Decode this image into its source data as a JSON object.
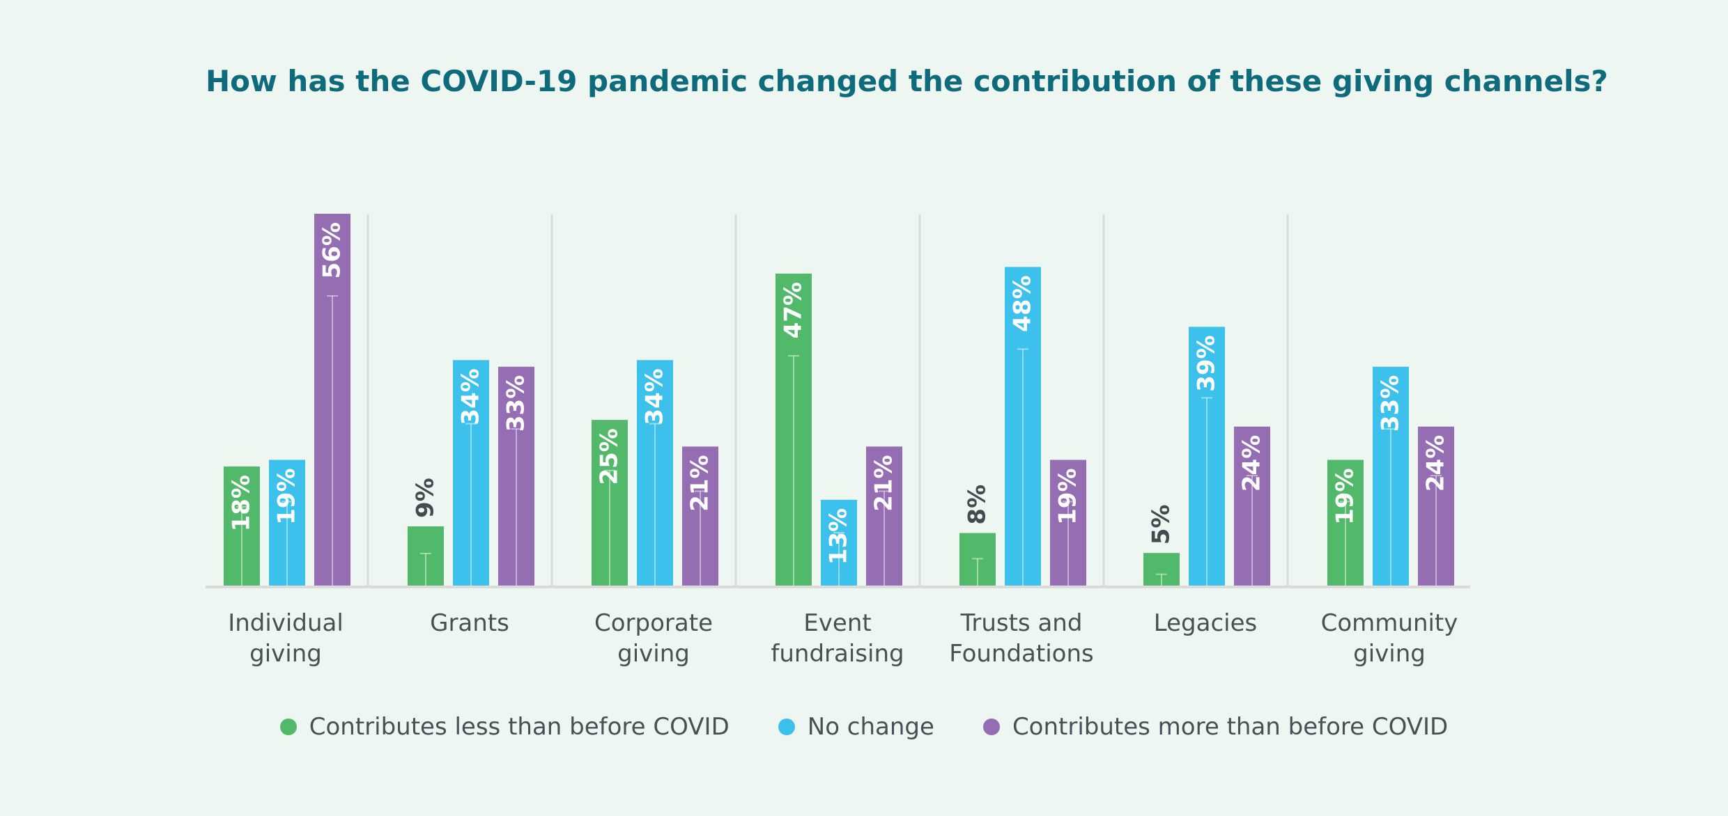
{
  "chart_data": {
    "type": "bar",
    "title": "How has the COVID-19 pandemic changed the contribution of these giving channels?",
    "xlabel": "",
    "ylabel": "",
    "ylim": [
      0,
      56
    ],
    "grid": false,
    "legend_position": "bottom",
    "categories": [
      [
        "Individual",
        "giving"
      ],
      [
        "Grants"
      ],
      [
        "Corporate",
        "giving"
      ],
      [
        "Event",
        "fundraising"
      ],
      [
        "Trusts and",
        "Foundations"
      ],
      [
        "Legacies"
      ],
      [
        "Community",
        "giving"
      ]
    ],
    "series": [
      {
        "name": "Contributes less than before COVID",
        "color": "#52b96a",
        "values": [
          18,
          9,
          25,
          47,
          8,
          5,
          19
        ],
        "labels": [
          "18%",
          "9%",
          "25%",
          "47%",
          "8%",
          "5%",
          "19%"
        ]
      },
      {
        "name": "No change",
        "color": "#3cc1ec",
        "values": [
          19,
          34,
          34,
          13,
          48,
          39,
          33
        ],
        "labels": [
          "19%",
          "34%",
          "34%",
          "13%",
          "48%",
          "39%",
          "33%"
        ]
      },
      {
        "name": "Contributes more than before COVID",
        "color": "#946db3",
        "values": [
          56,
          33,
          21,
          21,
          19,
          24,
          24
        ],
        "labels": [
          "56%",
          "33%",
          "21%",
          "21%",
          "19%",
          "24%",
          "24%"
        ]
      }
    ]
  }
}
